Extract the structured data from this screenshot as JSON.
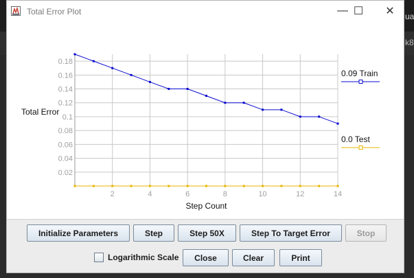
{
  "window": {
    "title": "Total Error Plot"
  },
  "controls": {
    "minimize": "—",
    "maximize": "☐",
    "close": "✕"
  },
  "buttons": {
    "initialize": "Initialize Parameters",
    "step": "Step",
    "step50": "Step 50X",
    "step_target": "Step To Target Error",
    "stop": "Stop",
    "close": "Close",
    "clear": "Clear",
    "print": "Print"
  },
  "log_scale": {
    "label": "Logarithmic Scale",
    "checked": false
  },
  "chart_data": {
    "type": "line",
    "xlabel": "Step Count",
    "ylabel": "Total Error",
    "xlim": [
      0,
      14
    ],
    "ylim": [
      0,
      0.19
    ],
    "xticks": [
      "2",
      "4",
      "6",
      "8",
      "10",
      "12",
      "14"
    ],
    "yticks": [
      "0.02",
      "0.04",
      "0.06",
      "0.08",
      "0.1",
      "0.12",
      "0.14",
      "0.16",
      "0.18"
    ],
    "grid": true,
    "legend_position": "right",
    "series": [
      {
        "name": "0.09 Train",
        "color": "#0a0ad0",
        "x": [
          0,
          1,
          2,
          3,
          4,
          5,
          6,
          7,
          8,
          9,
          10,
          11,
          12,
          13,
          14
        ],
        "y": [
          0.19,
          0.18,
          0.17,
          0.16,
          0.15,
          0.14,
          0.14,
          0.13,
          0.12,
          0.12,
          0.11,
          0.11,
          0.1,
          0.1,
          0.09
        ]
      },
      {
        "name": "0.0 Test",
        "color": "#e8b400",
        "x": [
          0,
          1,
          2,
          3,
          4,
          5,
          6,
          7,
          8,
          9,
          10,
          11,
          12,
          13,
          14
        ],
        "y": [
          0,
          0,
          0,
          0,
          0,
          0,
          0,
          0,
          0,
          0,
          0,
          0,
          0,
          0,
          0
        ]
      }
    ]
  }
}
